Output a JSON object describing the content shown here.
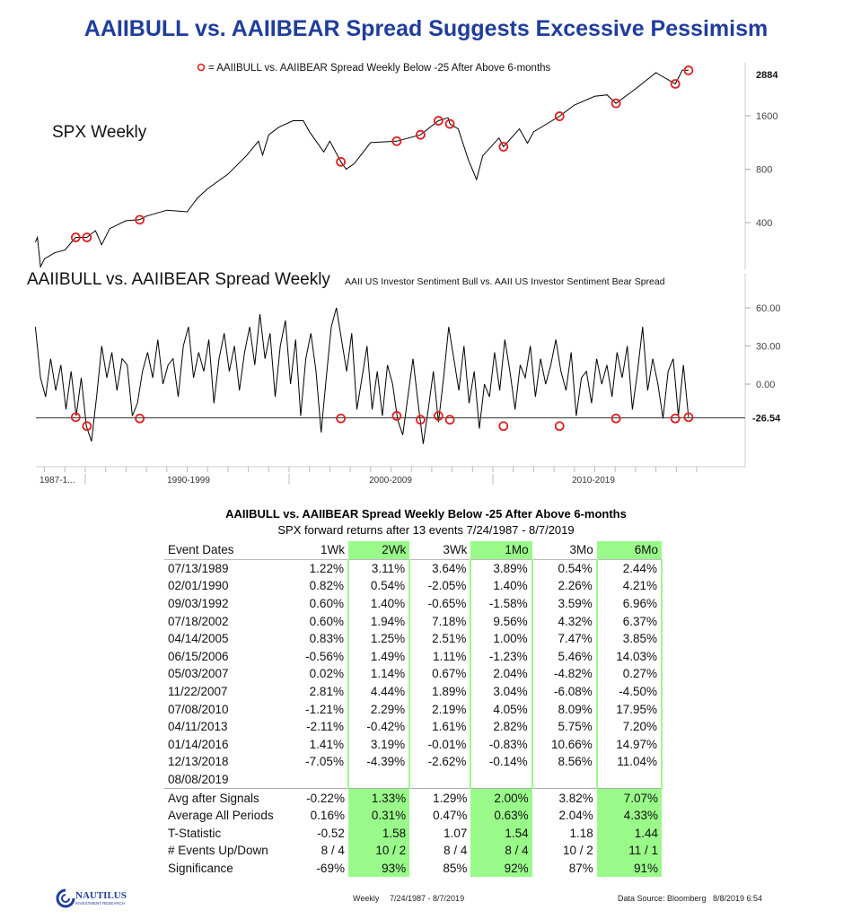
{
  "title": "AAIIBULL vs. AAIIBEAR Spread Suggests Excessive Pessimism",
  "chart_data": [
    {
      "type": "line",
      "title": "SPX Weekly",
      "legend": "= AAIIBULL vs. AAIIBEAR Spread Weekly Below -25 After Above 6-months",
      "y_scale": "log",
      "y_ticks": [
        400,
        800,
        1600
      ],
      "last_value_label": "2884",
      "x_range": [
        1987.55,
        2019.6
      ],
      "line_color": "#000000",
      "marker_color": "#e02020",
      "points": [
        [
          1987.55,
          310
        ],
        [
          1987.65,
          330
        ],
        [
          1987.8,
          225
        ],
        [
          1988.0,
          250
        ],
        [
          1988.5,
          270
        ],
        [
          1989.0,
          280
        ],
        [
          1989.53,
          330
        ],
        [
          1990.08,
          330
        ],
        [
          1990.5,
          360
        ],
        [
          1990.8,
          300
        ],
        [
          1991.2,
          370
        ],
        [
          1992.0,
          410
        ],
        [
          1992.67,
          415
        ],
        [
          1993.0,
          435
        ],
        [
          1994.0,
          470
        ],
        [
          1995.0,
          460
        ],
        [
          1995.5,
          550
        ],
        [
          1996.0,
          620
        ],
        [
          1997.0,
          750
        ],
        [
          1997.9,
          950
        ],
        [
          1998.5,
          1150
        ],
        [
          1998.7,
          960
        ],
        [
          1999.0,
          1250
        ],
        [
          1999.5,
          1380
        ],
        [
          2000.2,
          1500
        ],
        [
          2000.7,
          1500
        ],
        [
          2001.0,
          1300
        ],
        [
          2001.7,
          1000
        ],
        [
          2002.0,
          1150
        ],
        [
          2002.54,
          880
        ],
        [
          2002.8,
          800
        ],
        [
          2003.2,
          860
        ],
        [
          2004.0,
          1130
        ],
        [
          2005.28,
          1150
        ],
        [
          2006.45,
          1250
        ],
        [
          2007.33,
          1500
        ],
        [
          2007.8,
          1560
        ],
        [
          2007.89,
          1440
        ],
        [
          2008.3,
          1350
        ],
        [
          2008.8,
          900
        ],
        [
          2009.2,
          700
        ],
        [
          2009.5,
          950
        ],
        [
          2010.3,
          1200
        ],
        [
          2010.52,
          1070
        ],
        [
          2011.3,
          1350
        ],
        [
          2011.7,
          1120
        ],
        [
          2012.0,
          1300
        ],
        [
          2013.27,
          1590
        ],
        [
          2014.0,
          1840
        ],
        [
          2015.0,
          2060
        ],
        [
          2015.6,
          2100
        ],
        [
          2016.04,
          1880
        ],
        [
          2017.0,
          2270
        ],
        [
          2018.0,
          2800
        ],
        [
          2018.95,
          2420
        ],
        [
          2019.3,
          2900
        ],
        [
          2019.6,
          2884
        ]
      ],
      "events": [
        [
          1989.53,
          330
        ],
        [
          1990.08,
          330
        ],
        [
          1992.67,
          415
        ],
        [
          2002.54,
          880
        ],
        [
          2005.28,
          1150
        ],
        [
          2006.45,
          1250
        ],
        [
          2007.33,
          1500
        ],
        [
          2007.89,
          1440
        ],
        [
          2010.52,
          1070
        ],
        [
          2013.27,
          1590
        ],
        [
          2016.04,
          1880
        ],
        [
          2018.95,
          2420
        ],
        [
          2019.6,
          2884
        ]
      ]
    },
    {
      "type": "line",
      "title": "AAIIBULL vs. AAIIBEAR Spread Weekly",
      "subtitle": "AAII US Investor Sentiment Bull vs. AAII US Investor Sentiment Bear Spread",
      "y_ticks": [
        "60.00",
        "30.00",
        "0.00"
      ],
      "threshold_label": "-26.54",
      "threshold": -26.54,
      "x_tick_labels": [
        "1987-1...",
        "1990-1999",
        "2000-2009",
        "2010-2019"
      ],
      "x_range": [
        1987.55,
        2019.6
      ],
      "values": [
        45,
        5,
        -10,
        20,
        -5,
        15,
        -20,
        10,
        -25,
        5,
        -33,
        -45,
        -10,
        30,
        5,
        25,
        -5,
        20,
        15,
        -25,
        -15,
        10,
        25,
        5,
        35,
        0,
        15,
        20,
        -10,
        30,
        45,
        5,
        25,
        10,
        35,
        -15,
        20,
        40,
        10,
        30,
        -5,
        25,
        45,
        15,
        55,
        20,
        40,
        -10,
        30,
        50,
        0,
        35,
        -25,
        20,
        40,
        10,
        -38,
        5,
        45,
        60,
        35,
        10,
        40,
        -20,
        5,
        30,
        -20,
        10,
        -25,
        15,
        0,
        -28,
        -40,
        -10,
        20,
        -15,
        -47,
        -20,
        10,
        -30,
        5,
        45,
        20,
        -5,
        30,
        -15,
        10,
        -35,
        0,
        -10,
        25,
        -5,
        35,
        10,
        -20,
        15,
        5,
        30,
        -10,
        20,
        0,
        15,
        35,
        10,
        -5,
        25,
        -25,
        5,
        10,
        -15,
        20,
        0,
        15,
        -10,
        25,
        5,
        30,
        -20,
        10,
        45,
        -5,
        20,
        0,
        -27,
        10,
        20,
        -25,
        15,
        -26
      ],
      "events": [
        [
          1989.53,
          -26
        ],
        [
          1990.08,
          -33
        ],
        [
          1992.67,
          -27
        ],
        [
          2002.54,
          -27
        ],
        [
          2005.28,
          -25
        ],
        [
          2006.45,
          -28
        ],
        [
          2007.33,
          -25
        ],
        [
          2007.89,
          -28
        ],
        [
          2010.52,
          -33
        ],
        [
          2013.27,
          -33
        ],
        [
          2016.04,
          -27
        ],
        [
          2018.95,
          -27
        ],
        [
          2019.6,
          -26
        ]
      ]
    },
    {
      "type": "table",
      "title": "AAIIBULL vs. AAIIBEAR Spread Weekly Below -25 After Above 6-months",
      "subtitle": "SPX forward returns after 13 events 7/24/1987 - 8/7/2019",
      "highlight_color": "#99fa8a",
      "columns": [
        "Event Dates",
        "1Wk",
        "2Wk",
        "3Wk",
        "1Mo",
        "3Mo",
        "6Mo"
      ],
      "highlighted_columns": [
        "2Wk",
        "1Mo",
        "6Mo"
      ],
      "rows": [
        [
          "07/13/1989",
          "1.22%",
          "3.11%",
          "3.64%",
          "3.89%",
          "0.54%",
          "2.44%"
        ],
        [
          "02/01/1990",
          "0.82%",
          "0.54%",
          "-2.05%",
          "1.40%",
          "2.26%",
          "4.21%"
        ],
        [
          "09/03/1992",
          "0.60%",
          "1.40%",
          "-0.65%",
          "-1.58%",
          "3.59%",
          "6.96%"
        ],
        [
          "07/18/2002",
          "0.60%",
          "1.94%",
          "7.18%",
          "9.56%",
          "4.32%",
          "6.37%"
        ],
        [
          "04/14/2005",
          "0.83%",
          "1.25%",
          "2.51%",
          "1.00%",
          "7.47%",
          "3.85%"
        ],
        [
          "06/15/2006",
          "-0.56%",
          "1.49%",
          "1.11%",
          "-1.23%",
          "5.46%",
          "14.03%"
        ],
        [
          "05/03/2007",
          "0.02%",
          "1.14%",
          "0.67%",
          "2.04%",
          "-4.82%",
          "0.27%"
        ],
        [
          "11/22/2007",
          "2.81%",
          "4.44%",
          "1.89%",
          "3.04%",
          "-6.08%",
          "-4.50%"
        ],
        [
          "07/08/2010",
          "-1.21%",
          "2.29%",
          "2.19%",
          "4.05%",
          "8.09%",
          "17.95%"
        ],
        [
          "04/11/2013",
          "-2.11%",
          "-0.42%",
          "1.61%",
          "2.82%",
          "5.75%",
          "7.20%"
        ],
        [
          "01/14/2016",
          "1.41%",
          "3.19%",
          "-0.01%",
          "-0.83%",
          "10.66%",
          "14.97%"
        ],
        [
          "12/13/2018",
          "-7.05%",
          "-4.39%",
          "-2.62%",
          "-0.14%",
          "8.56%",
          "11.04%"
        ],
        [
          "08/08/2019",
          "",
          "",
          "",
          "",
          "",
          ""
        ]
      ],
      "summary": [
        [
          "Avg after Signals",
          "-0.22%",
          "1.33%",
          "1.29%",
          "2.00%",
          "3.82%",
          "7.07%"
        ],
        [
          "Average All Periods",
          "0.16%",
          "0.31%",
          "0.47%",
          "0.63%",
          "2.04%",
          "4.33%"
        ],
        [
          "T-Statistic",
          "-0.52",
          "1.58",
          "1.07",
          "1.54",
          "1.18",
          "1.44"
        ],
        [
          "# Events Up/Down",
          "8 / 4",
          "10 / 2",
          "8 / 4",
          "8 / 4",
          "10 / 2",
          "11 / 1"
        ],
        [
          "Significance",
          "-69%",
          "93%",
          "85%",
          "92%",
          "87%",
          "91%"
        ]
      ]
    }
  ],
  "footer": {
    "logo_text": "NAUTILUS",
    "logo_subtext": "INVESTMENT RESEARCH",
    "frequency": "Weekly",
    "date_range": "7/24/1987 - 8/7/2019",
    "source": "Data Source: Bloomberg",
    "timestamp": "8/8/2019 6:54"
  }
}
